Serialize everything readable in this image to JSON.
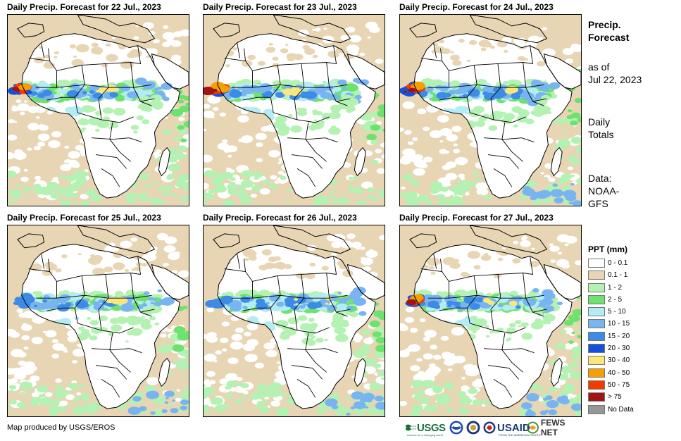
{
  "panels": [
    {
      "title": "Daily Precip. Forecast for 22 Jul., 2023"
    },
    {
      "title": "Daily Precip. Forecast for 23 Jul., 2023"
    },
    {
      "title": "Daily Precip. Forecast for 24 Jul., 2023"
    },
    {
      "title": "Daily Precip. Forecast for 25 Jul., 2023"
    },
    {
      "title": "Daily Precip. Forecast for 26 Jul., 2023"
    },
    {
      "title": "Daily Precip. Forecast for 27 Jul., 2023"
    }
  ],
  "sidebar": {
    "heading_line1": "Precip.",
    "heading_line2": "Forecast",
    "asof_line1": "as of",
    "asof_line2": "Jul 22, 2023",
    "totals_line1": "Daily",
    "totals_line2": "Totals",
    "data_line1": "Data:",
    "data_line2": "NOAA-",
    "data_line3": "GFS"
  },
  "legend": {
    "title": "PPT (mm)",
    "items": [
      {
        "label": "0 - 0.1",
        "color": "#ffffff"
      },
      {
        "label": "0.1 - 1",
        "color": "#e8d5b4"
      },
      {
        "label": "1 - 2",
        "color": "#b4f2b4"
      },
      {
        "label": "2 - 5",
        "color": "#6ee26e"
      },
      {
        "label": "5 - 10",
        "color": "#b4ecf4"
      },
      {
        "label": "10 - 15",
        "color": "#78b4f0"
      },
      {
        "label": "15 - 20",
        "color": "#3c8ce6"
      },
      {
        "label": "20 - 30",
        "color": "#1450dc"
      },
      {
        "label": "30 - 40",
        "color": "#fae67d"
      },
      {
        "label": "40 - 50",
        "color": "#f5a000"
      },
      {
        "label": "50 - 75",
        "color": "#f03c00"
      },
      {
        "label": "> 75",
        "color": "#a01414"
      },
      {
        "label": "No Data",
        "color": "#969696"
      }
    ]
  },
  "credit": "Map produced by USGS/EROS",
  "logos": {
    "usgs": "USGS",
    "usgs_tagline": "science for a changing world",
    "usaid": "USAID",
    "usaid_tagline": "FROM THE AMERICAN PEOPLE",
    "fews": "FEWS NET"
  }
}
